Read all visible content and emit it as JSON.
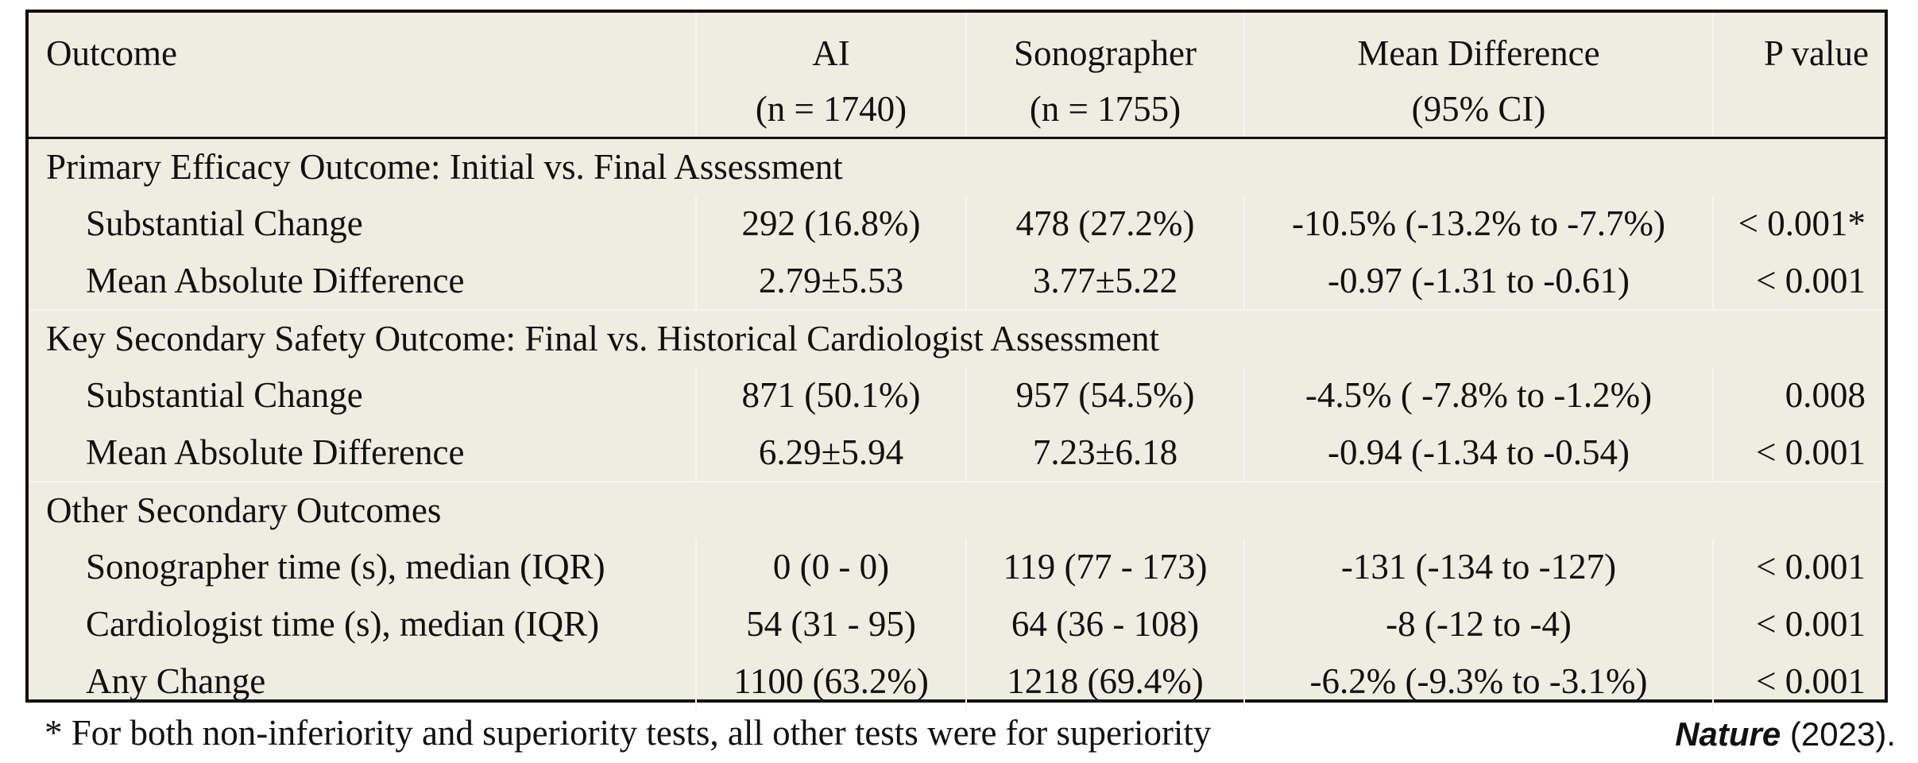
{
  "table": {
    "headers": {
      "outcome": "Outcome",
      "ai": "AI",
      "ai_n": "(n = 1740)",
      "sono": "Sonographer",
      "sono_n": "(n = 1755)",
      "diff": "Mean Difference",
      "diff_ci": "(95% CI)",
      "p": "P value"
    },
    "sections": [
      {
        "title": "Primary Efficacy Outcome: Initial vs. Final Assessment",
        "rows": [
          {
            "label": "Substantial Change",
            "ai": "292 (16.8%)",
            "sono": "478 (27.2%)",
            "diff": "-10.5% (-13.2% to -7.7%)",
            "p": "< 0.001*"
          },
          {
            "label": "Mean Absolute Difference",
            "ai": "2.79±5.53",
            "sono": "3.77±5.22",
            "diff": "-0.97 (-1.31 to -0.61)",
            "p": "< 0.001"
          }
        ]
      },
      {
        "title": "Key Secondary Safety Outcome: Final vs. Historical Cardiologist Assessment",
        "rows": [
          {
            "label": "Substantial Change",
            "ai": "871 (50.1%)",
            "sono": "957 (54.5%)",
            "diff": "-4.5% ( -7.8% to -1.2%)",
            "p": "0.008"
          },
          {
            "label": "Mean Absolute Difference",
            "ai": "6.29±5.94",
            "sono": "7.23±6.18",
            "diff": "-0.94 (-1.34 to -0.54)",
            "p": "< 0.001"
          }
        ]
      },
      {
        "title": "Other Secondary Outcomes",
        "rows": [
          {
            "label": "Sonographer time (s), median (IQR)",
            "ai": "0 (0 - 0)",
            "sono": "119 (77 - 173)",
            "diff": "-131 (-134 to -127)",
            "p": "< 0.001"
          },
          {
            "label": "Cardiologist time (s), median (IQR)",
            "ai": "54 (31 - 95)",
            "sono": "64 (36 - 108)",
            "diff": "-8 (-12 to -4)",
            "p": "< 0.001"
          },
          {
            "label": "Any Change",
            "ai": "1100 (63.2%)",
            "sono": "1218 (69.4%)",
            "diff": "-6.2% (-9.3% to -3.1%)",
            "p": "< 0.001"
          }
        ]
      }
    ]
  },
  "footnote": "* For both non-inferiority and superiority tests, all other tests were for superiority",
  "citation": {
    "journal": "Nature",
    "year": " (2023)."
  }
}
